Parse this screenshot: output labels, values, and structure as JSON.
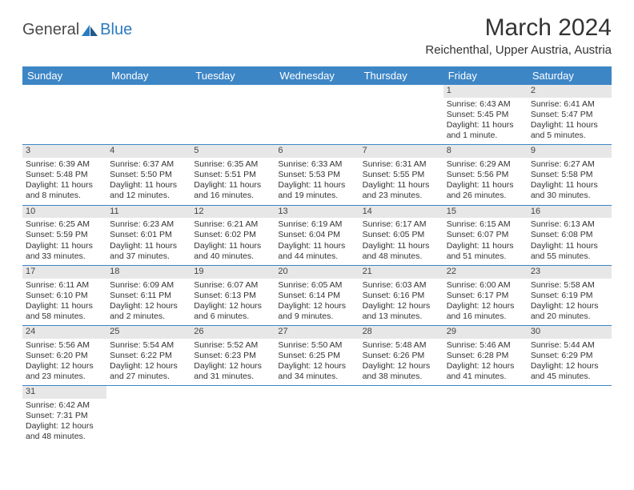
{
  "logo": {
    "text1": "General",
    "text2": "Blue"
  },
  "title": "March 2024",
  "location": "Reichenthal, Upper Austria, Austria",
  "colors": {
    "header_bg": "#3d86c6",
    "header_text": "#ffffff",
    "daynum_bg": "#e7e7e7",
    "border": "#3d86c6",
    "text": "#333333",
    "logo_gray": "#4a4a4a",
    "logo_blue": "#2b7bbf"
  },
  "day_headers": [
    "Sunday",
    "Monday",
    "Tuesday",
    "Wednesday",
    "Thursday",
    "Friday",
    "Saturday"
  ],
  "weeks": [
    [
      {
        "n": "",
        "sr": "",
        "ss": "",
        "dl": ""
      },
      {
        "n": "",
        "sr": "",
        "ss": "",
        "dl": ""
      },
      {
        "n": "",
        "sr": "",
        "ss": "",
        "dl": ""
      },
      {
        "n": "",
        "sr": "",
        "ss": "",
        "dl": ""
      },
      {
        "n": "",
        "sr": "",
        "ss": "",
        "dl": ""
      },
      {
        "n": "1",
        "sr": "Sunrise: 6:43 AM",
        "ss": "Sunset: 5:45 PM",
        "dl": "Daylight: 11 hours and 1 minute."
      },
      {
        "n": "2",
        "sr": "Sunrise: 6:41 AM",
        "ss": "Sunset: 5:47 PM",
        "dl": "Daylight: 11 hours and 5 minutes."
      }
    ],
    [
      {
        "n": "3",
        "sr": "Sunrise: 6:39 AM",
        "ss": "Sunset: 5:48 PM",
        "dl": "Daylight: 11 hours and 8 minutes."
      },
      {
        "n": "4",
        "sr": "Sunrise: 6:37 AM",
        "ss": "Sunset: 5:50 PM",
        "dl": "Daylight: 11 hours and 12 minutes."
      },
      {
        "n": "5",
        "sr": "Sunrise: 6:35 AM",
        "ss": "Sunset: 5:51 PM",
        "dl": "Daylight: 11 hours and 16 minutes."
      },
      {
        "n": "6",
        "sr": "Sunrise: 6:33 AM",
        "ss": "Sunset: 5:53 PM",
        "dl": "Daylight: 11 hours and 19 minutes."
      },
      {
        "n": "7",
        "sr": "Sunrise: 6:31 AM",
        "ss": "Sunset: 5:55 PM",
        "dl": "Daylight: 11 hours and 23 minutes."
      },
      {
        "n": "8",
        "sr": "Sunrise: 6:29 AM",
        "ss": "Sunset: 5:56 PM",
        "dl": "Daylight: 11 hours and 26 minutes."
      },
      {
        "n": "9",
        "sr": "Sunrise: 6:27 AM",
        "ss": "Sunset: 5:58 PM",
        "dl": "Daylight: 11 hours and 30 minutes."
      }
    ],
    [
      {
        "n": "10",
        "sr": "Sunrise: 6:25 AM",
        "ss": "Sunset: 5:59 PM",
        "dl": "Daylight: 11 hours and 33 minutes."
      },
      {
        "n": "11",
        "sr": "Sunrise: 6:23 AM",
        "ss": "Sunset: 6:01 PM",
        "dl": "Daylight: 11 hours and 37 minutes."
      },
      {
        "n": "12",
        "sr": "Sunrise: 6:21 AM",
        "ss": "Sunset: 6:02 PM",
        "dl": "Daylight: 11 hours and 40 minutes."
      },
      {
        "n": "13",
        "sr": "Sunrise: 6:19 AM",
        "ss": "Sunset: 6:04 PM",
        "dl": "Daylight: 11 hours and 44 minutes."
      },
      {
        "n": "14",
        "sr": "Sunrise: 6:17 AM",
        "ss": "Sunset: 6:05 PM",
        "dl": "Daylight: 11 hours and 48 minutes."
      },
      {
        "n": "15",
        "sr": "Sunrise: 6:15 AM",
        "ss": "Sunset: 6:07 PM",
        "dl": "Daylight: 11 hours and 51 minutes."
      },
      {
        "n": "16",
        "sr": "Sunrise: 6:13 AM",
        "ss": "Sunset: 6:08 PM",
        "dl": "Daylight: 11 hours and 55 minutes."
      }
    ],
    [
      {
        "n": "17",
        "sr": "Sunrise: 6:11 AM",
        "ss": "Sunset: 6:10 PM",
        "dl": "Daylight: 11 hours and 58 minutes."
      },
      {
        "n": "18",
        "sr": "Sunrise: 6:09 AM",
        "ss": "Sunset: 6:11 PM",
        "dl": "Daylight: 12 hours and 2 minutes."
      },
      {
        "n": "19",
        "sr": "Sunrise: 6:07 AM",
        "ss": "Sunset: 6:13 PM",
        "dl": "Daylight: 12 hours and 6 minutes."
      },
      {
        "n": "20",
        "sr": "Sunrise: 6:05 AM",
        "ss": "Sunset: 6:14 PM",
        "dl": "Daylight: 12 hours and 9 minutes."
      },
      {
        "n": "21",
        "sr": "Sunrise: 6:03 AM",
        "ss": "Sunset: 6:16 PM",
        "dl": "Daylight: 12 hours and 13 minutes."
      },
      {
        "n": "22",
        "sr": "Sunrise: 6:00 AM",
        "ss": "Sunset: 6:17 PM",
        "dl": "Daylight: 12 hours and 16 minutes."
      },
      {
        "n": "23",
        "sr": "Sunrise: 5:58 AM",
        "ss": "Sunset: 6:19 PM",
        "dl": "Daylight: 12 hours and 20 minutes."
      }
    ],
    [
      {
        "n": "24",
        "sr": "Sunrise: 5:56 AM",
        "ss": "Sunset: 6:20 PM",
        "dl": "Daylight: 12 hours and 23 minutes."
      },
      {
        "n": "25",
        "sr": "Sunrise: 5:54 AM",
        "ss": "Sunset: 6:22 PM",
        "dl": "Daylight: 12 hours and 27 minutes."
      },
      {
        "n": "26",
        "sr": "Sunrise: 5:52 AM",
        "ss": "Sunset: 6:23 PM",
        "dl": "Daylight: 12 hours and 31 minutes."
      },
      {
        "n": "27",
        "sr": "Sunrise: 5:50 AM",
        "ss": "Sunset: 6:25 PM",
        "dl": "Daylight: 12 hours and 34 minutes."
      },
      {
        "n": "28",
        "sr": "Sunrise: 5:48 AM",
        "ss": "Sunset: 6:26 PM",
        "dl": "Daylight: 12 hours and 38 minutes."
      },
      {
        "n": "29",
        "sr": "Sunrise: 5:46 AM",
        "ss": "Sunset: 6:28 PM",
        "dl": "Daylight: 12 hours and 41 minutes."
      },
      {
        "n": "30",
        "sr": "Sunrise: 5:44 AM",
        "ss": "Sunset: 6:29 PM",
        "dl": "Daylight: 12 hours and 45 minutes."
      }
    ],
    [
      {
        "n": "31",
        "sr": "Sunrise: 6:42 AM",
        "ss": "Sunset: 7:31 PM",
        "dl": "Daylight: 12 hours and 48 minutes."
      },
      {
        "n": "",
        "sr": "",
        "ss": "",
        "dl": ""
      },
      {
        "n": "",
        "sr": "",
        "ss": "",
        "dl": ""
      },
      {
        "n": "",
        "sr": "",
        "ss": "",
        "dl": ""
      },
      {
        "n": "",
        "sr": "",
        "ss": "",
        "dl": ""
      },
      {
        "n": "",
        "sr": "",
        "ss": "",
        "dl": ""
      },
      {
        "n": "",
        "sr": "",
        "ss": "",
        "dl": ""
      }
    ]
  ]
}
